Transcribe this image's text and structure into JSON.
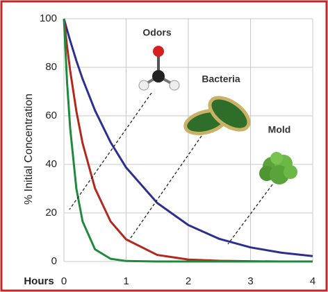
{
  "chart_data": {
    "type": "line",
    "ylabel": "% Initial Concentration",
    "xlabel": "Hours",
    "x": [
      0,
      0.05,
      0.1,
      0.2,
      0.3,
      0.5,
      0.75,
      1,
      1.5,
      2,
      2.5,
      3,
      3.5,
      4
    ],
    "series": [
      {
        "color": "#2b2f8f",
        "values": [
          100,
          95.4,
          91,
          82.7,
          75.2,
          62.2,
          49.1,
          38.7,
          24.1,
          15,
          9.3,
          5.8,
          3.6,
          2.2
        ]
      },
      {
        "color": "#b3281e",
        "values": [
          100,
          88.7,
          78.7,
          61.9,
          48.7,
          30.1,
          16.5,
          9.1,
          2.7,
          0.8,
          0.3,
          0.1,
          0,
          0
        ]
      },
      {
        "color": "#1f8a3c",
        "values": [
          100,
          74,
          55,
          30,
          16.5,
          5,
          1.1,
          0.2,
          0,
          0,
          0,
          0,
          0,
          0
        ]
      }
    ],
    "annotations": [
      "Odors",
      "Bacteria",
      "Mold"
    ],
    "xlim": [
      0,
      4
    ],
    "xticks": [
      0,
      1,
      2,
      3,
      4
    ],
    "ylim": [
      0,
      100
    ],
    "yticks": [
      0,
      20,
      40,
      60,
      80,
      100
    ],
    "grid": true
  }
}
